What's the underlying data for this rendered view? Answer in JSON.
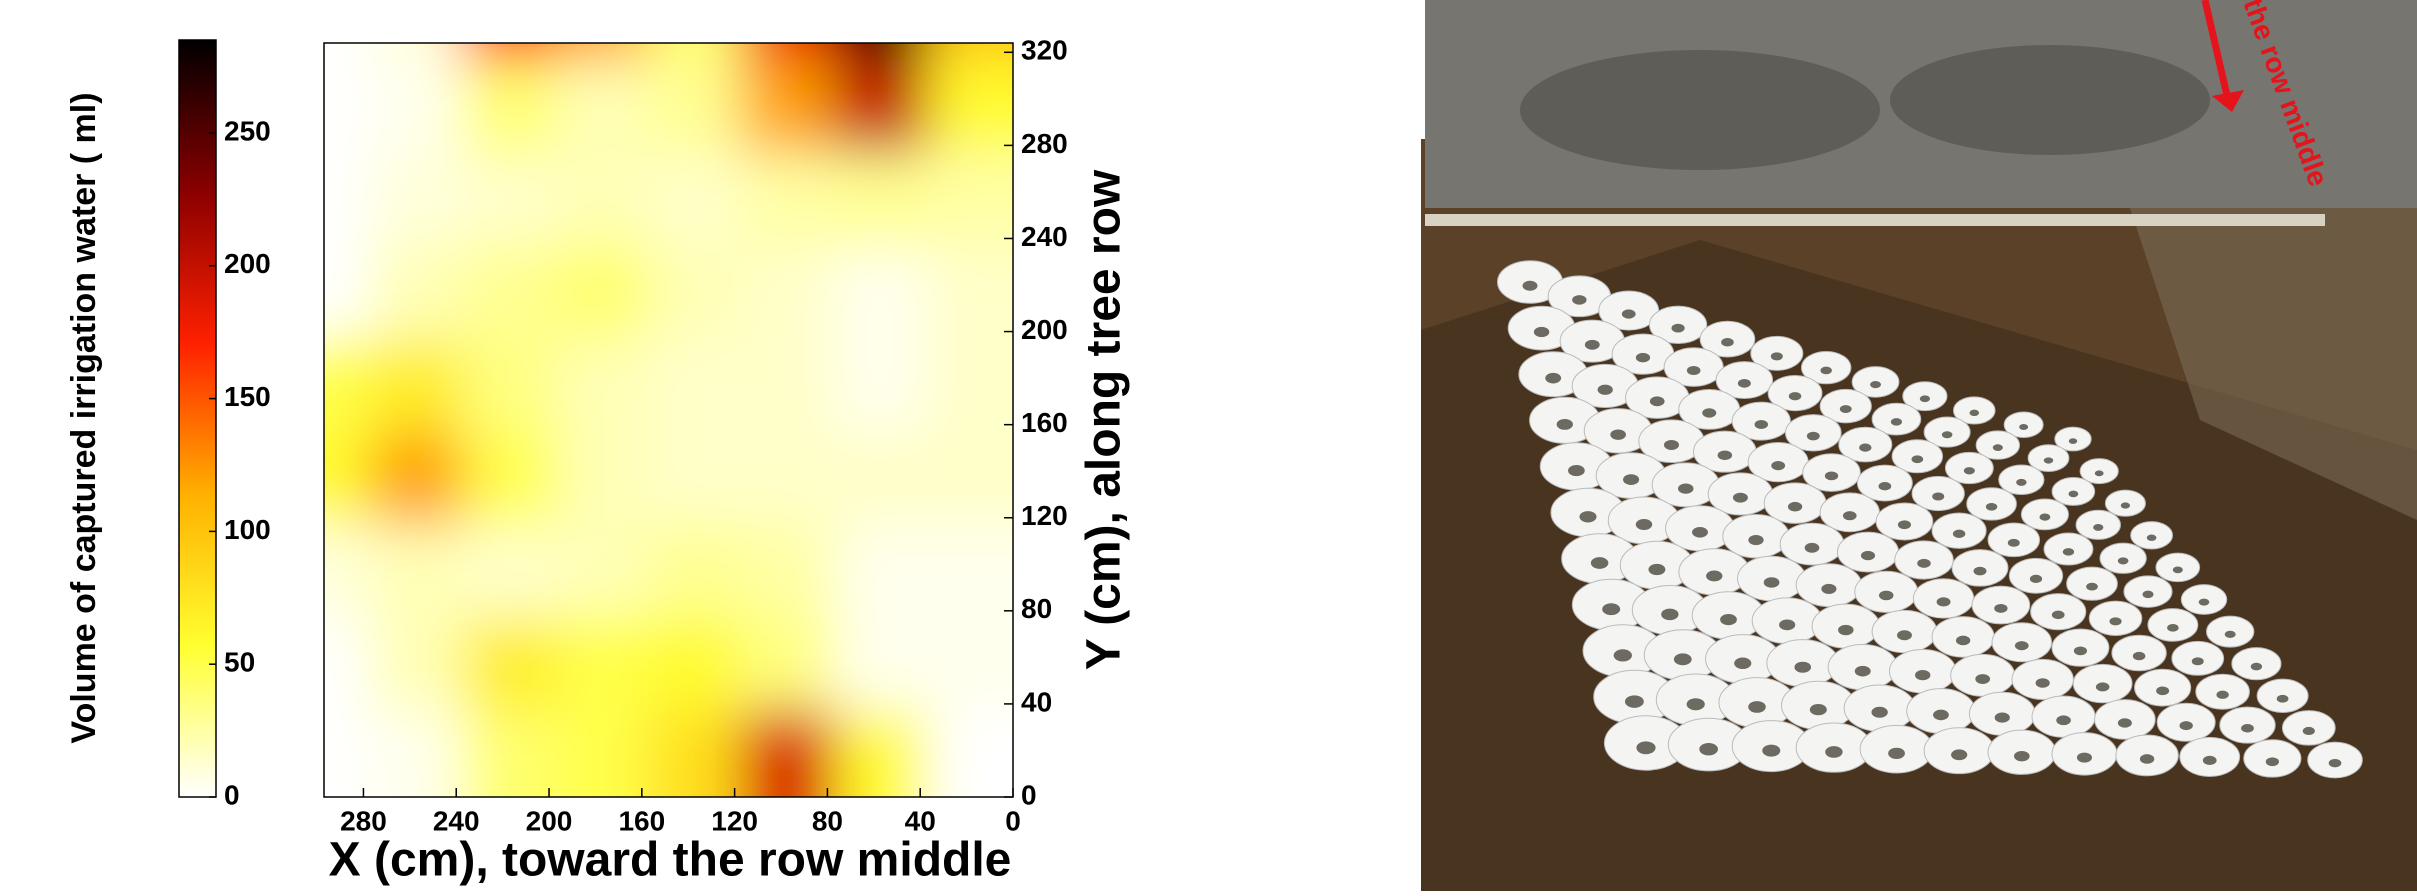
{
  "chart_data": {
    "type": "contour",
    "x": [
      280,
      240,
      200,
      160,
      120,
      80,
      40,
      0
    ],
    "y": [
      320,
      280,
      240,
      200,
      160,
      120,
      80,
      40,
      0
    ],
    "z": [
      [
        0,
        10,
        170,
        120,
        40,
        180,
        270,
        100
      ],
      [
        0,
        5,
        40,
        20,
        30,
        120,
        200,
        60
      ],
      [
        0,
        10,
        15,
        20,
        15,
        25,
        30,
        25
      ],
      [
        0,
        20,
        30,
        40,
        20,
        15,
        5,
        15
      ],
      [
        50,
        70,
        35,
        20,
        15,
        15,
        5,
        15
      ],
      [
        60,
        120,
        50,
        20,
        15,
        15,
        15,
        15
      ],
      [
        10,
        20,
        15,
        20,
        30,
        25,
        5,
        5
      ],
      [
        0,
        20,
        70,
        50,
        60,
        35,
        5,
        5
      ],
      [
        0,
        5,
        40,
        50,
        80,
        190,
        60,
        0
      ]
    ],
    "xlim": [
      297,
      0
    ],
    "ylim": [
      0,
      324
    ],
    "xticks": [
      280,
      240,
      200,
      160,
      120,
      80,
      40,
      0
    ],
    "yticks": [
      0,
      40,
      80,
      120,
      160,
      200,
      240,
      280,
      320
    ],
    "xlabel": "X (cm), toward the row middle",
    "ylabel": "Y (cm), along tree row",
    "colorbar": {
      "label": "Volume of captured irrigation water ( ml)",
      "lim": [
        0,
        285
      ],
      "ticks": [
        0,
        50,
        100,
        150,
        200,
        250
      ]
    },
    "colormap": [
      "#ffffff",
      "#ffff30",
      "#ffb000",
      "#ff2000",
      "#8a0000",
      "#000000"
    ]
  },
  "photo": {
    "annotation": "the row middle"
  }
}
